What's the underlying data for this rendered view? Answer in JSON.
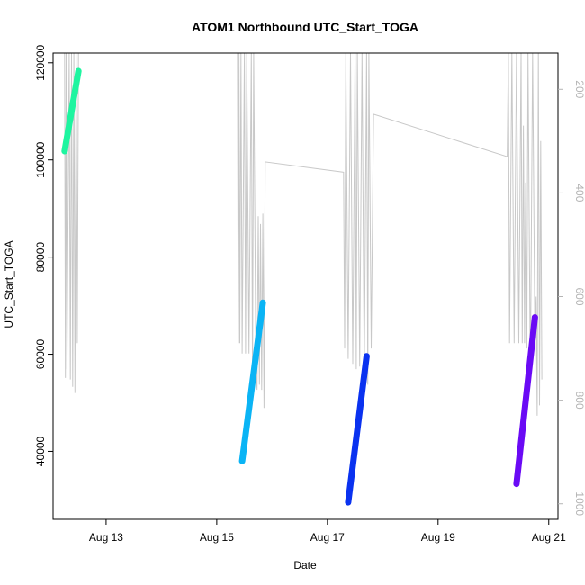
{
  "chart_data": {
    "type": "line",
    "title": "ATOM1 Northbound UTC_Start_TOGA",
    "xlabel": "Date",
    "ylabel": "UTC_Start_TOGA",
    "x_ticks": [
      {
        "date": "2023-08-13",
        "label": "Aug 13"
      },
      {
        "date": "2023-08-15",
        "label": "Aug 15"
      },
      {
        "date": "2023-08-17",
        "label": "Aug 17"
      },
      {
        "date": "2023-08-19",
        "label": "Aug 19"
      },
      {
        "date": "2023-08-21",
        "label": "Aug 21"
      }
    ],
    "xlim": [
      "2023-08-12T01:00",
      "2023-08-21T04:00"
    ],
    "ylim": [
      26000,
      122000
    ],
    "y_ticks": [
      40000,
      60000,
      80000,
      100000,
      120000
    ],
    "y2_ticks": [
      200,
      400,
      600,
      800,
      1000
    ],
    "y2lim": [
      1030,
      130
    ],
    "grid": false,
    "colors": {
      "secondary_series": "#c8c8c8",
      "right_axis": "#b4b4b4"
    },
    "series": [
      {
        "role": "utc_start_toga",
        "color": "#1ef5a0",
        "points": [
          [
            "2023-08-12T06:00",
            101800
          ],
          [
            "2023-08-12T12:00",
            118300
          ]
        ]
      },
      {
        "role": "utc_start_toga",
        "color": "#0ab4f5",
        "points": [
          [
            "2023-08-15T11:00",
            38000
          ],
          [
            "2023-08-15T20:00",
            70600
          ]
        ]
      },
      {
        "role": "utc_start_toga",
        "color": "#0a32f0",
        "points": [
          [
            "2023-08-17T09:00",
            29500
          ],
          [
            "2023-08-17T17:00",
            59600
          ]
        ]
      },
      {
        "role": "utc_start_toga",
        "color": "#6a0af5",
        "points": [
          [
            "2023-08-20T10:00",
            33300
          ],
          [
            "2023-08-20T18:00",
            67600
          ]
        ]
      }
    ],
    "secondary_series": {
      "axis": "right",
      "color": "#c8c8c8",
      "points": [
        [
          "2023-08-12T06:00",
          130
        ],
        [
          "2023-08-12T06:20",
          757
        ],
        [
          "2023-08-12T06:40",
          130
        ],
        [
          "2023-08-12T07:00",
          740
        ],
        [
          "2023-08-12T08:00",
          130
        ],
        [
          "2023-08-12T08:30",
          760
        ],
        [
          "2023-08-12T09:00",
          130
        ],
        [
          "2023-08-12T09:30",
          774
        ],
        [
          "2023-08-12T10:00",
          130
        ],
        [
          "2023-08-12T10:30",
          786
        ],
        [
          "2023-08-12T11:00",
          130
        ],
        [
          "2023-08-12T11:30",
          690
        ],
        [
          "2023-08-12T12:00",
          130
        ],
        [
          "2023-08-15T09:00",
          130
        ],
        [
          "2023-08-15T09:20",
          690
        ],
        [
          "2023-08-15T09:40",
          130
        ],
        [
          "2023-08-15T10:00",
          690
        ],
        [
          "2023-08-15T10:30",
          130
        ],
        [
          "2023-08-15T11:00",
          710
        ],
        [
          "2023-08-15T12:00",
          130
        ],
        [
          "2023-08-15T12:30",
          710
        ],
        [
          "2023-08-15T13:00",
          130
        ],
        [
          "2023-08-15T14:00",
          710
        ],
        [
          "2023-08-15T15:00",
          130
        ],
        [
          "2023-08-15T15:30",
          760
        ],
        [
          "2023-08-15T16:00",
          130
        ],
        [
          "2023-08-15T17:00",
          740
        ],
        [
          "2023-08-15T17:30",
          780
        ],
        [
          "2023-08-15T18:00",
          445
        ],
        [
          "2023-08-15T18:30",
          770
        ],
        [
          "2023-08-15T19:00",
          460
        ],
        [
          "2023-08-15T19:30",
          780
        ],
        [
          "2023-08-15T20:00",
          440
        ],
        [
          "2023-08-15T20:30",
          815
        ],
        [
          "2023-08-15T21:00",
          340
        ],
        [
          "2023-08-17T07:00",
          360
        ],
        [
          "2023-08-17T07:30",
          700
        ],
        [
          "2023-08-17T08:00",
          130
        ],
        [
          "2023-08-17T09:00",
          720
        ],
        [
          "2023-08-17T10:00",
          130
        ],
        [
          "2023-08-17T11:00",
          730
        ],
        [
          "2023-08-17T12:00",
          130
        ],
        [
          "2023-08-17T12:30",
          740
        ],
        [
          "2023-08-17T13:00",
          130
        ],
        [
          "2023-08-17T14:00",
          735
        ],
        [
          "2023-08-17T15:00",
          130
        ],
        [
          "2023-08-17T16:00",
          750
        ],
        [
          "2023-08-17T17:00",
          130
        ],
        [
          "2023-08-17T17:30",
          770
        ],
        [
          "2023-08-17T18:00",
          130
        ],
        [
          "2023-08-17T19:00",
          700
        ],
        [
          "2023-08-17T20:00",
          248
        ],
        [
          "2023-08-20T06:00",
          330
        ],
        [
          "2023-08-20T06:30",
          130
        ],
        [
          "2023-08-20T07:00",
          690
        ],
        [
          "2023-08-20T08:00",
          130
        ],
        [
          "2023-08-20T09:00",
          690
        ],
        [
          "2023-08-20T10:00",
          130
        ],
        [
          "2023-08-20T11:00",
          690
        ],
        [
          "2023-08-20T12:00",
          130
        ],
        [
          "2023-08-20T12:30",
          690
        ],
        [
          "2023-08-20T13:00",
          270
        ],
        [
          "2023-08-20T13:30",
          690
        ],
        [
          "2023-08-20T14:00",
          380
        ],
        [
          "2023-08-20T14:30",
          700
        ],
        [
          "2023-08-20T15:00",
          130
        ],
        [
          "2023-08-20T16:00",
          760
        ],
        [
          "2023-08-20T17:00",
          130
        ],
        [
          "2023-08-20T18:00",
          690
        ],
        [
          "2023-08-20T18:30",
          600
        ],
        [
          "2023-08-20T19:00",
          830
        ],
        [
          "2023-08-20T19:30",
          130
        ],
        [
          "2023-08-20T20:00",
          810
        ],
        [
          "2023-08-20T20:30",
          300
        ],
        [
          "2023-08-20T21:00",
          760
        ]
      ]
    }
  }
}
